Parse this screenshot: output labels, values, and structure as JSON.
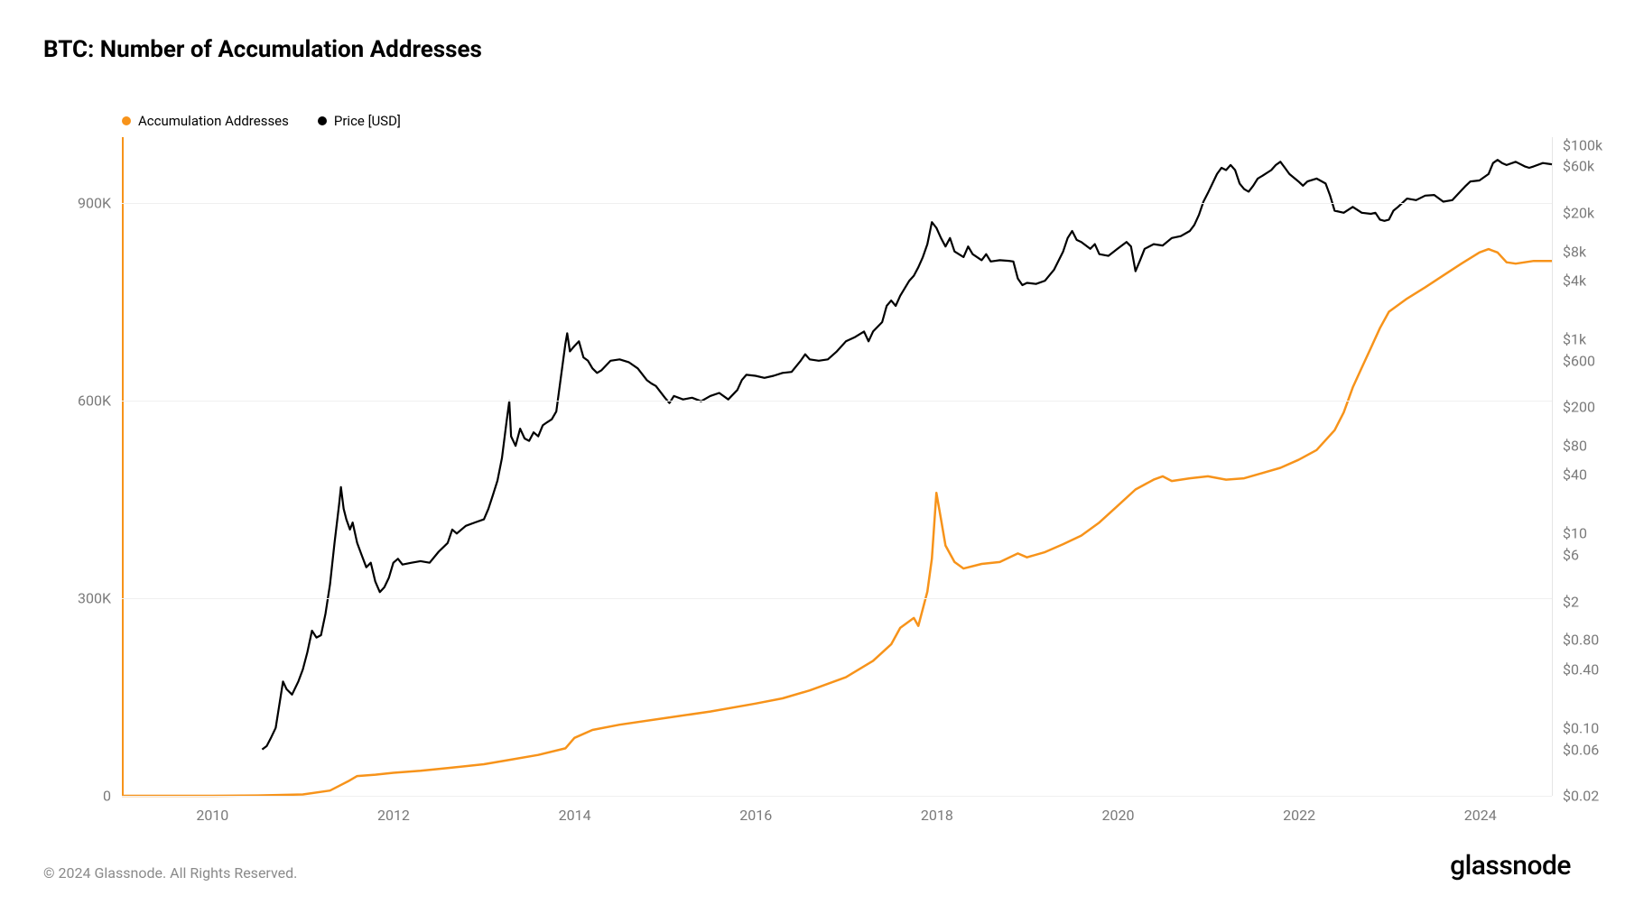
{
  "title": "BTC: Number of Accumulation Addresses",
  "copyright": "© 2024 Glassnode. All Rights Reserved.",
  "brand": "glassnode",
  "chart": {
    "type": "line",
    "background_color": "#ffffff",
    "grid_color": "#f0f0f0",
    "axis_font_color": "#7a7a7a",
    "axis_font_size": 16,
    "legend": [
      {
        "label": "Accumulation Addresses",
        "color": "#f7931a"
      },
      {
        "label": "Price [USD]",
        "color": "#000000"
      }
    ],
    "x_axis": {
      "min_year": 2009.0,
      "max_year": 2024.8,
      "ticks": [
        2010,
        2012,
        2014,
        2016,
        2018,
        2020,
        2022,
        2024
      ]
    },
    "y_left": {
      "scale": "linear",
      "min": 0,
      "max": 1000000,
      "ticks": [
        {
          "v": 0,
          "label": "0"
        },
        {
          "v": 300000,
          "label": "300K"
        },
        {
          "v": 600000,
          "label": "600K"
        },
        {
          "v": 900000,
          "label": "900K"
        }
      ],
      "axis_line_color": "#f7931a"
    },
    "y_right": {
      "scale": "log",
      "min": 0.02,
      "max": 120000,
      "ticks": [
        {
          "v": 0.02,
          "label": "$0.02"
        },
        {
          "v": 0.06,
          "label": "$0.06"
        },
        {
          "v": 0.1,
          "label": "$0.10"
        },
        {
          "v": 0.4,
          "label": "$0.40"
        },
        {
          "v": 0.8,
          "label": "$0.80"
        },
        {
          "v": 2,
          "label": "$2"
        },
        {
          "v": 6,
          "label": "$6"
        },
        {
          "v": 10,
          "label": "$10"
        },
        {
          "v": 40,
          "label": "$40"
        },
        {
          "v": 80,
          "label": "$80"
        },
        {
          "v": 200,
          "label": "$200"
        },
        {
          "v": 600,
          "label": "$600"
        },
        {
          "v": 1000,
          "label": "$1k"
        },
        {
          "v": 4000,
          "label": "$4k"
        },
        {
          "v": 8000,
          "label": "$8k"
        },
        {
          "v": 20000,
          "label": "$20k"
        },
        {
          "v": 60000,
          "label": "$60k"
        },
        {
          "v": 100000,
          "label": "$100k"
        }
      ]
    },
    "series_accumulation": {
      "color": "#f7931a",
      "line_width": 2.5,
      "data": [
        [
          2009.0,
          0
        ],
        [
          2010.0,
          0
        ],
        [
          2010.5,
          500
        ],
        [
          2011.0,
          2000
        ],
        [
          2011.3,
          8000
        ],
        [
          2011.5,
          22000
        ],
        [
          2011.6,
          30000
        ],
        [
          2011.8,
          32000
        ],
        [
          2012.0,
          35000
        ],
        [
          2012.3,
          38000
        ],
        [
          2012.6,
          42000
        ],
        [
          2013.0,
          48000
        ],
        [
          2013.3,
          55000
        ],
        [
          2013.6,
          62000
        ],
        [
          2013.9,
          72000
        ],
        [
          2014.0,
          88000
        ],
        [
          2014.2,
          100000
        ],
        [
          2014.5,
          108000
        ],
        [
          2015.0,
          118000
        ],
        [
          2015.5,
          128000
        ],
        [
          2016.0,
          140000
        ],
        [
          2016.3,
          148000
        ],
        [
          2016.6,
          160000
        ],
        [
          2017.0,
          180000
        ],
        [
          2017.3,
          205000
        ],
        [
          2017.5,
          230000
        ],
        [
          2017.6,
          255000
        ],
        [
          2017.7,
          265000
        ],
        [
          2017.75,
          270000
        ],
        [
          2017.8,
          258000
        ],
        [
          2017.9,
          310000
        ],
        [
          2017.95,
          360000
        ],
        [
          2018.0,
          460000
        ],
        [
          2018.05,
          420000
        ],
        [
          2018.1,
          380000
        ],
        [
          2018.2,
          355000
        ],
        [
          2018.3,
          345000
        ],
        [
          2018.5,
          352000
        ],
        [
          2018.7,
          355000
        ],
        [
          2018.9,
          368000
        ],
        [
          2019.0,
          362000
        ],
        [
          2019.2,
          370000
        ],
        [
          2019.4,
          382000
        ],
        [
          2019.6,
          395000
        ],
        [
          2019.8,
          415000
        ],
        [
          2020.0,
          440000
        ],
        [
          2020.2,
          465000
        ],
        [
          2020.4,
          480000
        ],
        [
          2020.5,
          485000
        ],
        [
          2020.6,
          478000
        ],
        [
          2020.8,
          482000
        ],
        [
          2021.0,
          485000
        ],
        [
          2021.2,
          480000
        ],
        [
          2021.4,
          482000
        ],
        [
          2021.6,
          490000
        ],
        [
          2021.8,
          498000
        ],
        [
          2022.0,
          510000
        ],
        [
          2022.2,
          525000
        ],
        [
          2022.4,
          555000
        ],
        [
          2022.5,
          582000
        ],
        [
          2022.6,
          620000
        ],
        [
          2022.7,
          650000
        ],
        [
          2022.8,
          680000
        ],
        [
          2022.9,
          710000
        ],
        [
          2023.0,
          735000
        ],
        [
          2023.2,
          755000
        ],
        [
          2023.4,
          772000
        ],
        [
          2023.6,
          790000
        ],
        [
          2023.8,
          808000
        ],
        [
          2024.0,
          825000
        ],
        [
          2024.1,
          830000
        ],
        [
          2024.2,
          825000
        ],
        [
          2024.3,
          810000
        ],
        [
          2024.4,
          808000
        ],
        [
          2024.6,
          812000
        ],
        [
          2024.8,
          812000
        ]
      ]
    },
    "series_price": {
      "color": "#000000",
      "line_width": 2.2,
      "data": [
        [
          2010.55,
          0.06
        ],
        [
          2010.6,
          0.065
        ],
        [
          2010.65,
          0.08
        ],
        [
          2010.7,
          0.1
        ],
        [
          2010.75,
          0.2
        ],
        [
          2010.78,
          0.3
        ],
        [
          2010.82,
          0.25
        ],
        [
          2010.88,
          0.22
        ],
        [
          2010.95,
          0.3
        ],
        [
          2011.0,
          0.4
        ],
        [
          2011.05,
          0.6
        ],
        [
          2011.1,
          1.0
        ],
        [
          2011.15,
          0.85
        ],
        [
          2011.2,
          0.9
        ],
        [
          2011.25,
          1.5
        ],
        [
          2011.3,
          3
        ],
        [
          2011.35,
          8
        ],
        [
          2011.4,
          20
        ],
        [
          2011.42,
          30
        ],
        [
          2011.45,
          18
        ],
        [
          2011.48,
          14
        ],
        [
          2011.52,
          11
        ],
        [
          2011.55,
          13
        ],
        [
          2011.6,
          8
        ],
        [
          2011.65,
          6
        ],
        [
          2011.7,
          4.5
        ],
        [
          2011.75,
          5
        ],
        [
          2011.8,
          3.2
        ],
        [
          2011.85,
          2.5
        ],
        [
          2011.9,
          2.8
        ],
        [
          2011.95,
          3.5
        ],
        [
          2012.0,
          5
        ],
        [
          2012.05,
          5.5
        ],
        [
          2012.1,
          4.8
        ],
        [
          2012.2,
          5
        ],
        [
          2012.3,
          5.2
        ],
        [
          2012.4,
          5
        ],
        [
          2012.5,
          6.5
        ],
        [
          2012.6,
          8
        ],
        [
          2012.65,
          11
        ],
        [
          2012.7,
          10
        ],
        [
          2012.8,
          12
        ],
        [
          2012.9,
          13
        ],
        [
          2013.0,
          14
        ],
        [
          2013.05,
          18
        ],
        [
          2013.1,
          25
        ],
        [
          2013.15,
          35
        ],
        [
          2013.2,
          60
        ],
        [
          2013.25,
          140
        ],
        [
          2013.28,
          230
        ],
        [
          2013.3,
          100
        ],
        [
          2013.35,
          80
        ],
        [
          2013.4,
          120
        ],
        [
          2013.45,
          95
        ],
        [
          2013.5,
          90
        ],
        [
          2013.55,
          110
        ],
        [
          2013.6,
          100
        ],
        [
          2013.65,
          130
        ],
        [
          2013.7,
          140
        ],
        [
          2013.75,
          150
        ],
        [
          2013.8,
          180
        ],
        [
          2013.85,
          400
        ],
        [
          2013.9,
          900
        ],
        [
          2013.92,
          1150
        ],
        [
          2013.95,
          750
        ],
        [
          2014.0,
          850
        ],
        [
          2014.05,
          950
        ],
        [
          2014.1,
          650
        ],
        [
          2014.15,
          600
        ],
        [
          2014.2,
          500
        ],
        [
          2014.25,
          450
        ],
        [
          2014.3,
          480
        ],
        [
          2014.4,
          600
        ],
        [
          2014.5,
          620
        ],
        [
          2014.6,
          580
        ],
        [
          2014.7,
          500
        ],
        [
          2014.8,
          380
        ],
        [
          2014.85,
          350
        ],
        [
          2014.9,
          330
        ],
        [
          2015.0,
          250
        ],
        [
          2015.05,
          220
        ],
        [
          2015.1,
          260
        ],
        [
          2015.2,
          240
        ],
        [
          2015.3,
          250
        ],
        [
          2015.4,
          230
        ],
        [
          2015.5,
          260
        ],
        [
          2015.6,
          280
        ],
        [
          2015.7,
          240
        ],
        [
          2015.8,
          300
        ],
        [
          2015.85,
          380
        ],
        [
          2015.9,
          430
        ],
        [
          2016.0,
          420
        ],
        [
          2016.1,
          400
        ],
        [
          2016.2,
          420
        ],
        [
          2016.3,
          450
        ],
        [
          2016.4,
          460
        ],
        [
          2016.5,
          600
        ],
        [
          2016.55,
          700
        ],
        [
          2016.6,
          620
        ],
        [
          2016.7,
          600
        ],
        [
          2016.8,
          620
        ],
        [
          2016.9,
          750
        ],
        [
          2017.0,
          950
        ],
        [
          2017.1,
          1050
        ],
        [
          2017.2,
          1200
        ],
        [
          2017.25,
          950
        ],
        [
          2017.3,
          1200
        ],
        [
          2017.4,
          1500
        ],
        [
          2017.45,
          2200
        ],
        [
          2017.5,
          2500
        ],
        [
          2017.55,
          2200
        ],
        [
          2017.6,
          2800
        ],
        [
          2017.7,
          4000
        ],
        [
          2017.75,
          4500
        ],
        [
          2017.8,
          5500
        ],
        [
          2017.85,
          7000
        ],
        [
          2017.9,
          9500
        ],
        [
          2017.95,
          16000
        ],
        [
          2018.0,
          14000
        ],
        [
          2018.05,
          11000
        ],
        [
          2018.1,
          9000
        ],
        [
          2018.15,
          11000
        ],
        [
          2018.2,
          8000
        ],
        [
          2018.3,
          7000
        ],
        [
          2018.35,
          9000
        ],
        [
          2018.4,
          7500
        ],
        [
          2018.5,
          6500
        ],
        [
          2018.55,
          7500
        ],
        [
          2018.6,
          6300
        ],
        [
          2018.7,
          6500
        ],
        [
          2018.8,
          6400
        ],
        [
          2018.85,
          6300
        ],
        [
          2018.9,
          4200
        ],
        [
          2018.95,
          3600
        ],
        [
          2019.0,
          3800
        ],
        [
          2019.1,
          3700
        ],
        [
          2019.2,
          4000
        ],
        [
          2019.3,
          5200
        ],
        [
          2019.4,
          8000
        ],
        [
          2019.45,
          11000
        ],
        [
          2019.5,
          13000
        ],
        [
          2019.55,
          10500
        ],
        [
          2019.6,
          10000
        ],
        [
          2019.7,
          8500
        ],
        [
          2019.75,
          9500
        ],
        [
          2019.8,
          7500
        ],
        [
          2019.9,
          7200
        ],
        [
          2020.0,
          8500
        ],
        [
          2020.1,
          10000
        ],
        [
          2020.15,
          9000
        ],
        [
          2020.2,
          5000
        ],
        [
          2020.25,
          6500
        ],
        [
          2020.3,
          8500
        ],
        [
          2020.4,
          9500
        ],
        [
          2020.5,
          9200
        ],
        [
          2020.6,
          11000
        ],
        [
          2020.7,
          11500
        ],
        [
          2020.8,
          13000
        ],
        [
          2020.85,
          15000
        ],
        [
          2020.9,
          19000
        ],
        [
          2020.95,
          26000
        ],
        [
          2021.0,
          32000
        ],
        [
          2021.05,
          40000
        ],
        [
          2021.1,
          50000
        ],
        [
          2021.15,
          58000
        ],
        [
          2021.2,
          55000
        ],
        [
          2021.25,
          62000
        ],
        [
          2021.3,
          55000
        ],
        [
          2021.35,
          40000
        ],
        [
          2021.4,
          35000
        ],
        [
          2021.45,
          33000
        ],
        [
          2021.5,
          38000
        ],
        [
          2021.55,
          45000
        ],
        [
          2021.6,
          48000
        ],
        [
          2021.7,
          55000
        ],
        [
          2021.75,
          62000
        ],
        [
          2021.8,
          67000
        ],
        [
          2021.85,
          58000
        ],
        [
          2021.9,
          50000
        ],
        [
          2022.0,
          42000
        ],
        [
          2022.05,
          38000
        ],
        [
          2022.1,
          42000
        ],
        [
          2022.2,
          45000
        ],
        [
          2022.3,
          40000
        ],
        [
          2022.35,
          30000
        ],
        [
          2022.4,
          21000
        ],
        [
          2022.5,
          20000
        ],
        [
          2022.6,
          23000
        ],
        [
          2022.7,
          20000
        ],
        [
          2022.8,
          19500
        ],
        [
          2022.85,
          20000
        ],
        [
          2022.9,
          17000
        ],
        [
          2022.95,
          16500
        ],
        [
          2023.0,
          17000
        ],
        [
          2023.05,
          21000
        ],
        [
          2023.1,
          23000
        ],
        [
          2023.2,
          28000
        ],
        [
          2023.3,
          27000
        ],
        [
          2023.4,
          30000
        ],
        [
          2023.5,
          30500
        ],
        [
          2023.6,
          26000
        ],
        [
          2023.7,
          27000
        ],
        [
          2023.8,
          34000
        ],
        [
          2023.85,
          38000
        ],
        [
          2023.9,
          42000
        ],
        [
          2024.0,
          43000
        ],
        [
          2024.1,
          50000
        ],
        [
          2024.15,
          65000
        ],
        [
          2024.2,
          70000
        ],
        [
          2024.25,
          65000
        ],
        [
          2024.3,
          62000
        ],
        [
          2024.4,
          67000
        ],
        [
          2024.5,
          60000
        ],
        [
          2024.55,
          58000
        ],
        [
          2024.6,
          60000
        ],
        [
          2024.7,
          65000
        ],
        [
          2024.8,
          63000
        ]
      ]
    }
  }
}
